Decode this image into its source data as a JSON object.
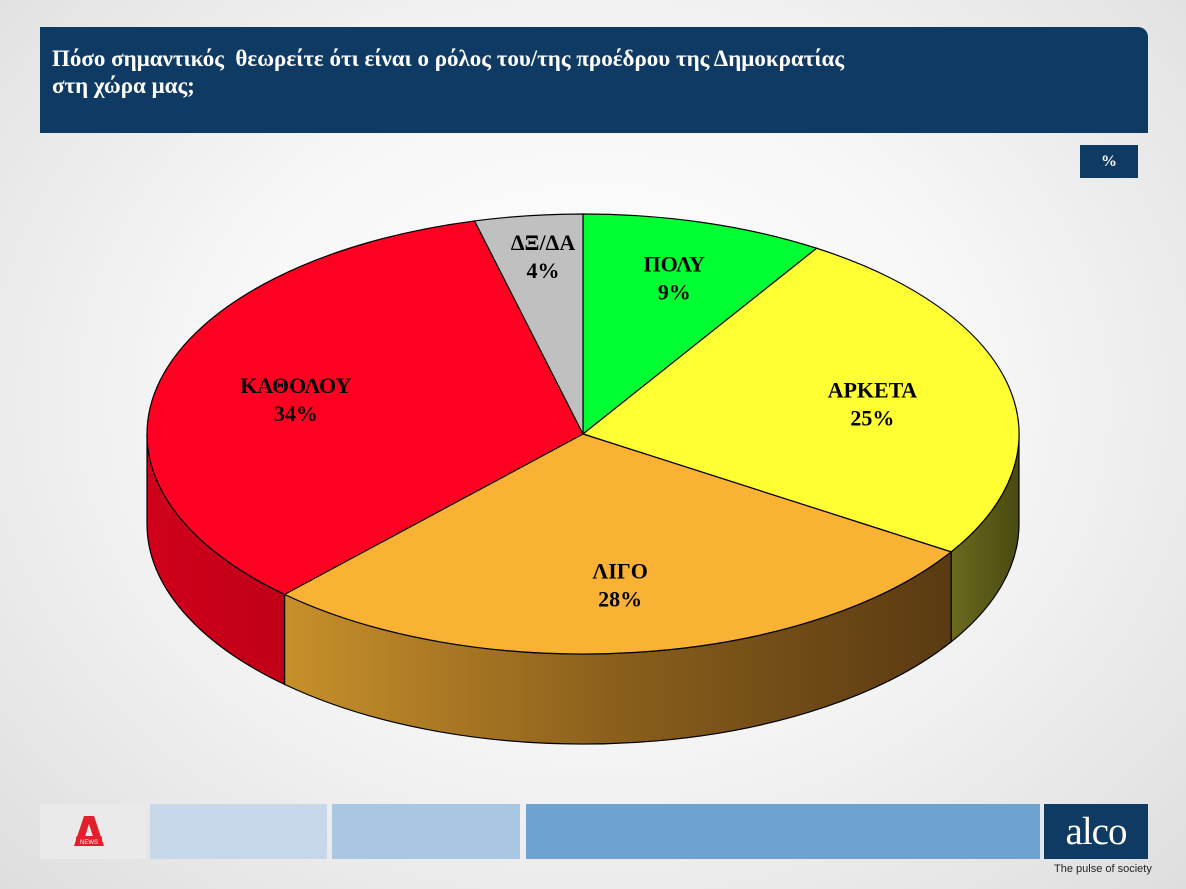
{
  "header": {
    "title": "Πόσο σημαντικός  θεωρείτε ότι είναι ο ρόλος του/της προέδρου της Δημοκρατίας\nστη χώρα μας;"
  },
  "unit_badge": "%",
  "chart_data": {
    "type": "pie",
    "title": "Πόσο σημαντικός  θεωρείτε ότι είναι ο ρόλος του/της προέδρου της Δημοκρατίας στη χώρα μας;",
    "unit": "%",
    "slices": [
      {
        "label": "ΠΟΛΥ",
        "value": 9,
        "value_label": "9%",
        "color": "#00ff33"
      },
      {
        "label": "ΑΡΚΕΤΑ",
        "value": 25,
        "value_label": "25%",
        "color": "#ffff33"
      },
      {
        "label": "ΛΙΓΟ",
        "value": 28,
        "value_label": "28%",
        "color": "#f9b234"
      },
      {
        "label": "ΚΑΘΟΛΟΥ",
        "value": 34,
        "value_label": "34%",
        "color": "#ff0022"
      },
      {
        "label": "ΔΞ/ΔΑ",
        "value": 4,
        "value_label": "4%",
        "color": "#c0c0c0"
      }
    ]
  },
  "footer": {
    "brand": "alco",
    "tagline": "The pulse of society",
    "news_logo": "NEWS",
    "bar_colors": [
      "#c8d8ea",
      "#a9c6e2",
      "#6fa3cf"
    ]
  }
}
